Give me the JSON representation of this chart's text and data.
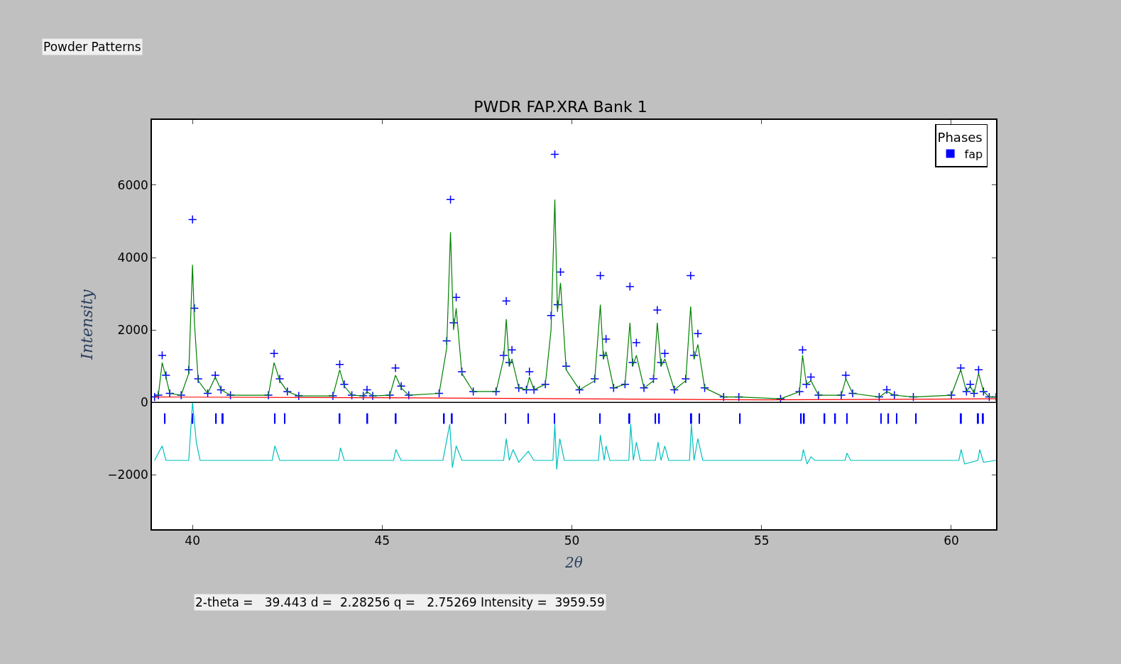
{
  "chart_data": {
    "type": "line",
    "title": "PWDR FAP.XRA Bank 1",
    "xlabel": "2θ",
    "ylabel": "Intensity",
    "legend_title": "Phases",
    "xlim": [
      38.93,
      61.18
    ],
    "ylim": [
      -3500,
      7800
    ],
    "xticks": [
      40,
      45,
      50,
      55,
      60
    ],
    "yticks": [
      {
        "value": -2000,
        "label": "−2000"
      },
      0,
      2000,
      4000,
      6000
    ],
    "legend": "top right",
    "ref_lines": [
      {
        "axis": "y",
        "value": 0,
        "color": "#000000"
      }
    ],
    "annotations": [
      "Powder Patterns",
      "2-theta =   39.443 d =  2.28256 q =   2.75269 Intensity =  3959.59"
    ],
    "series": [
      {
        "type": "scatter",
        "marker": "cross",
        "color": "#0000ff",
        "x": [
          39.0,
          39.1,
          39.2,
          39.3,
          39.4,
          39.7,
          39.9,
          40.0,
          40.05,
          40.15,
          40.4,
          40.6,
          40.75,
          41.0,
          42.0,
          42.15,
          42.3,
          42.5,
          42.8,
          43.7,
          43.88,
          44.0,
          44.2,
          44.5,
          44.6,
          44.75,
          45.2,
          45.35,
          45.5,
          45.7,
          46.5,
          46.7,
          46.8,
          46.88,
          46.95,
          47.1,
          47.4,
          48.0,
          48.2,
          48.27,
          48.35,
          48.42,
          48.6,
          48.8,
          48.88,
          49.0,
          49.3,
          49.45,
          49.55,
          49.62,
          49.7,
          49.85,
          50.2,
          50.6,
          50.75,
          50.83,
          50.9,
          51.1,
          51.4,
          51.53,
          51.6,
          51.7,
          51.9,
          52.15,
          52.25,
          52.35,
          52.45,
          52.7,
          53.0,
          53.13,
          53.22,
          53.32,
          53.5,
          54.0,
          54.4,
          55.5,
          56.0,
          56.08,
          56.18,
          56.3,
          56.5,
          57.1,
          57.22,
          57.4,
          58.1,
          58.3,
          58.5,
          59.0,
          60.0,
          60.25,
          60.4,
          60.5,
          60.6,
          60.72,
          60.85,
          61.0,
          61.18
        ],
        "values": [
          150,
          200,
          1300,
          750,
          250,
          200,
          900,
          5050,
          2600,
          650,
          250,
          750,
          350,
          200,
          200,
          1350,
          650,
          300,
          180,
          180,
          1050,
          500,
          200,
          180,
          350,
          180,
          200,
          950,
          450,
          200,
          250,
          1700,
          5600,
          2200,
          2900,
          850,
          300,
          300,
          1300,
          2800,
          1100,
          1450,
          400,
          350,
          850,
          350,
          500,
          2400,
          6850,
          2700,
          3600,
          1000,
          350,
          650,
          3500,
          1300,
          1750,
          400,
          500,
          3200,
          1100,
          1650,
          400,
          650,
          2550,
          1100,
          1350,
          350,
          650,
          3500,
          1300,
          1900,
          400,
          150,
          150,
          100,
          300,
          1450,
          500,
          700,
          200,
          200,
          750,
          250,
          150,
          350,
          200,
          150,
          200,
          950,
          300,
          500,
          250,
          900,
          300,
          150,
          150
        ]
      },
      {
        "color": "#008000",
        "x": [
          39.0,
          39.1,
          39.2,
          39.3,
          39.4,
          39.7,
          39.9,
          40.0,
          40.05,
          40.15,
          40.4,
          40.6,
          40.75,
          41.0,
          42.0,
          42.15,
          42.3,
          42.5,
          42.8,
          43.7,
          43.88,
          44.0,
          44.2,
          44.5,
          44.6,
          44.75,
          45.2,
          45.35,
          45.5,
          45.7,
          46.5,
          46.7,
          46.8,
          46.88,
          46.95,
          47.1,
          47.4,
          48.0,
          48.2,
          48.27,
          48.35,
          48.42,
          48.6,
          48.8,
          48.88,
          49.0,
          49.3,
          49.45,
          49.55,
          49.62,
          49.7,
          49.85,
          50.2,
          50.6,
          50.75,
          50.83,
          50.9,
          51.1,
          51.4,
          51.53,
          51.6,
          51.7,
          51.9,
          52.15,
          52.25,
          52.35,
          52.45,
          52.7,
          53.0,
          53.13,
          53.22,
          53.32,
          53.5,
          54.0,
          54.4,
          55.5,
          56.0,
          56.08,
          56.18,
          56.3,
          56.5,
          57.1,
          57.22,
          57.4,
          58.1,
          58.3,
          58.5,
          59.0,
          60.0,
          60.25,
          60.4,
          60.5,
          60.6,
          60.72,
          60.85,
          61.0,
          61.18
        ],
        "values": [
          150,
          200,
          1100,
          700,
          250,
          200,
          800,
          3800,
          2200,
          600,
          250,
          700,
          350,
          200,
          200,
          1100,
          600,
          300,
          180,
          180,
          900,
          450,
          200,
          180,
          300,
          180,
          200,
          750,
          400,
          200,
          250,
          1500,
          4700,
          2000,
          2600,
          800,
          300,
          300,
          1200,
          2300,
          1000,
          1200,
          400,
          350,
          700,
          350,
          500,
          2000,
          5600,
          2500,
          3300,
          900,
          350,
          600,
          2700,
          1200,
          1400,
          400,
          500,
          2200,
          1000,
          1300,
          400,
          600,
          2200,
          1000,
          1200,
          350,
          600,
          2650,
          1200,
          1600,
          400,
          150,
          150,
          100,
          300,
          1300,
          500,
          600,
          200,
          200,
          650,
          250,
          150,
          300,
          200,
          150,
          200,
          900,
          300,
          450,
          250,
          800,
          300,
          150,
          150
        ]
      },
      {
        "color": "#ff0000",
        "x": [
          39.0,
          45.0,
          50.0,
          55.0,
          61.18
        ],
        "values": [
          150,
          130,
          100,
          70,
          100
        ]
      },
      {
        "color": "#00bfbf",
        "x": [
          39.0,
          39.2,
          39.3,
          39.9,
          40.0,
          40.1,
          40.2,
          42.1,
          42.17,
          42.3,
          43.85,
          43.9,
          44.0,
          45.3,
          45.36,
          45.5,
          46.6,
          46.78,
          46.85,
          46.95,
          47.1,
          48.2,
          48.27,
          48.35,
          48.45,
          48.6,
          48.85,
          49.0,
          49.5,
          49.55,
          49.6,
          49.68,
          49.8,
          50.7,
          50.75,
          50.85,
          50.9,
          51.0,
          51.5,
          51.55,
          51.62,
          51.7,
          51.8,
          52.2,
          52.27,
          52.35,
          52.45,
          52.55,
          53.1,
          53.15,
          53.22,
          53.32,
          53.45,
          56.05,
          56.1,
          56.2,
          56.3,
          56.4,
          57.2,
          57.25,
          57.35,
          60.2,
          60.26,
          60.35,
          60.7,
          60.75,
          60.85,
          61.18
        ],
        "values": [
          -1600,
          -1200,
          -1600,
          -1600,
          0,
          -1100,
          -1600,
          -1600,
          -1200,
          -1600,
          -1600,
          -1250,
          -1600,
          -1600,
          -1300,
          -1600,
          -1600,
          -600,
          -1800,
          -1200,
          -1600,
          -1600,
          -1000,
          -1600,
          -1300,
          -1650,
          -1350,
          -1600,
          -1600,
          -600,
          -1850,
          -1000,
          -1600,
          -1600,
          -900,
          -1600,
          -1200,
          -1600,
          -1600,
          -600,
          -1600,
          -1100,
          -1600,
          -1600,
          -1100,
          -1600,
          -1200,
          -1600,
          -1600,
          -600,
          -1600,
          -1000,
          -1600,
          -1600,
          -1300,
          -1700,
          -1500,
          -1600,
          -1600,
          -1400,
          -1600,
          -1600,
          -1300,
          -1700,
          -1600,
          -1300,
          -1650,
          -1600
        ]
      },
      {
        "type": "bar",
        "name": "fap",
        "color": "#0000ff",
        "base": [
          -300,
          -300,
          -300,
          -300,
          -300,
          -300,
          -300,
          -300,
          -300,
          -300,
          -300,
          -300,
          -300,
          -300,
          -300,
          -300,
          -300,
          -300,
          -300,
          -300,
          -300,
          -300,
          -300,
          -300,
          -300,
          -300,
          -300,
          -300,
          -300,
          -300,
          -300,
          -300,
          -300
        ],
        "x": [
          39.27,
          40.0,
          40.62,
          40.8,
          42.17,
          42.43,
          43.88,
          44.61,
          45.36,
          46.63,
          46.84,
          48.25,
          48.85,
          49.54,
          50.74,
          51.52,
          52.2,
          52.3,
          53.15,
          53.36,
          54.43,
          56.04,
          56.12,
          56.66,
          56.94,
          57.25,
          58.15,
          58.34,
          58.56,
          59.07,
          60.26,
          60.71,
          60.84
        ],
        "values": [
          -290,
          -290,
          -290,
          -290,
          -290,
          -290,
          -290,
          -290,
          -290,
          -290,
          -290,
          -290,
          -290,
          -290,
          -290,
          -290,
          -290,
          -290,
          -290,
          -290,
          -290,
          -290,
          -290,
          -290,
          -290,
          -290,
          -290,
          -290,
          -290,
          -290,
          -290,
          -290,
          -290
        ]
      }
    ]
  }
}
